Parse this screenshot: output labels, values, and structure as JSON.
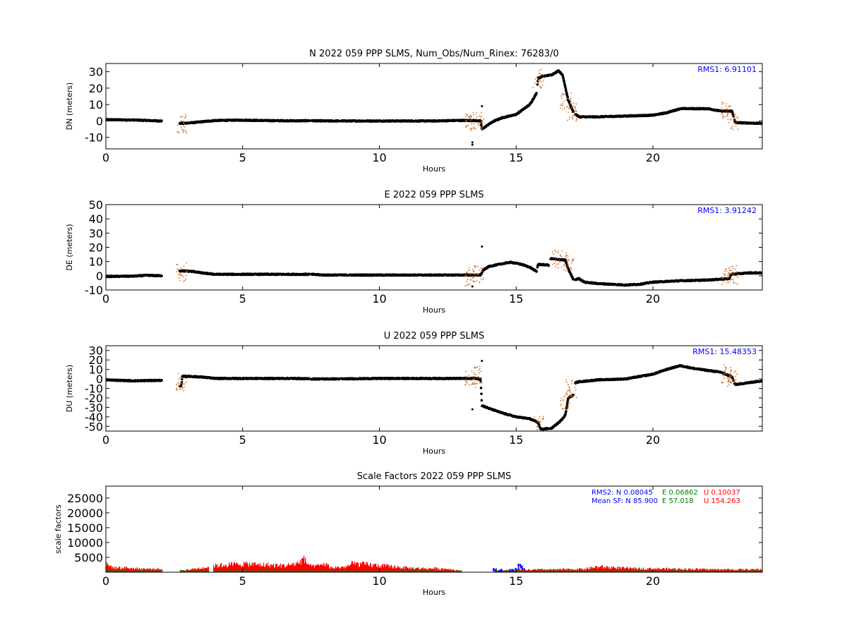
{
  "chart_data": [
    {
      "type": "scatter",
      "title": "N 2022 059 PPP  SLMS, Num_Obs/Num_Rinex: 76283/0",
      "xlabel": "Hours",
      "ylabel": "DN (meters)",
      "xlim": [
        0,
        24
      ],
      "ylim": [
        -17,
        35
      ],
      "xticks": [
        0,
        5,
        10,
        15,
        20
      ],
      "yticks": [
        -10,
        0,
        10,
        20,
        30
      ],
      "annotations": [
        "RMS1:  6.91101"
      ],
      "annotation_colors": [
        "#0000ff"
      ],
      "series": [
        {
          "color": "#000000",
          "points": [
            [
              0,
              0.8
            ],
            [
              1,
              0.6
            ],
            [
              2,
              0
            ],
            [
              2.75,
              -1.5
            ],
            [
              3.2,
              -1
            ],
            [
              3.5,
              -0.5
            ],
            [
              4,
              0.3
            ],
            [
              5,
              0.5
            ],
            [
              6,
              0.2
            ],
            [
              7,
              0.1
            ],
            [
              7.5,
              0.2
            ],
            [
              8,
              0
            ],
            [
              8.5,
              0
            ],
            [
              10,
              0
            ],
            [
              12,
              0
            ],
            [
              12.8,
              0.3
            ],
            [
              13.4,
              0.3
            ],
            [
              13.7,
              0
            ],
            [
              13.75,
              -5
            ],
            [
              14,
              -2
            ],
            [
              14.2,
              0
            ],
            [
              14.5,
              2
            ],
            [
              15,
              4
            ],
            [
              15.5,
              10
            ],
            [
              15.75,
              17
            ],
            [
              15.8,
              26
            ],
            [
              16,
              27.5
            ],
            [
              16.3,
              28
            ],
            [
              16.55,
              30.5
            ],
            [
              16.7,
              28
            ],
            [
              16.9,
              13
            ],
            [
              17.1,
              5
            ],
            [
              17.3,
              2.5
            ],
            [
              18,
              2.5
            ],
            [
              19,
              3
            ],
            [
              20,
              3.5
            ],
            [
              20.5,
              5
            ],
            [
              21,
              7.5
            ],
            [
              22,
              7.5
            ],
            [
              22.5,
              6
            ],
            [
              22.9,
              6
            ],
            [
              23,
              -1
            ],
            [
              24,
              -1.5
            ]
          ],
          "isolated": [
            [
              13.4,
              -13
            ],
            [
              13.4,
              -14.5
            ],
            [
              13.75,
              9
            ]
          ]
        },
        {
          "color": "#d2691e",
          "name": "",
          "scatter_around": [
            [
              2.75,
              -1.5
            ],
            [
              13.3,
              0
            ],
            [
              13.6,
              0
            ],
            [
              15.8,
              26
            ],
            [
              16.8,
              13
            ],
            [
              17.0,
              6
            ],
            [
              22.7,
              6
            ],
            [
              22.9,
              0
            ]
          ]
        }
      ]
    },
    {
      "type": "scatter",
      "title": "E 2022 059 PPP  SLMS",
      "xlabel": "Hours",
      "ylabel": "DE (meters)",
      "xlim": [
        0,
        24
      ],
      "ylim": [
        -10,
        50
      ],
      "xticks": [
        0,
        5,
        10,
        15,
        20
      ],
      "yticks": [
        -10,
        0,
        10,
        20,
        30,
        40,
        50
      ],
      "annotations": [
        "RMS1:  3.91242"
      ],
      "annotation_colors": [
        "#0000ff"
      ],
      "series": [
        {
          "color": "#000000",
          "points": [
            [
              0,
              -0.5
            ],
            [
              1,
              -0.3
            ],
            [
              1.5,
              0.3
            ],
            [
              2,
              0
            ],
            [
              2.75,
              3.5
            ],
            [
              3.2,
              3
            ],
            [
              3.5,
              2
            ],
            [
              4,
              1
            ],
            [
              5,
              1
            ],
            [
              7,
              1
            ],
            [
              7.5,
              1
            ],
            [
              8,
              0.5
            ],
            [
              9,
              0.5
            ],
            [
              10,
              0.5
            ],
            [
              12,
              0.5
            ],
            [
              13,
              0.5
            ],
            [
              13.5,
              0.5
            ],
            [
              13.7,
              0.5
            ],
            [
              13.8,
              4
            ],
            [
              14,
              6.5
            ],
            [
              14.5,
              8.5
            ],
            [
              14.8,
              9.5
            ],
            [
              15.2,
              8
            ],
            [
              15.5,
              6
            ],
            [
              15.75,
              3
            ],
            [
              15.8,
              8
            ],
            [
              16.2,
              7.5
            ],
            [
              16.25,
              12
            ],
            [
              16.8,
              11
            ],
            [
              16.9,
              5
            ],
            [
              17.1,
              -3
            ],
            [
              17.3,
              -2
            ],
            [
              17.5,
              -4.5
            ],
            [
              18,
              -5.5
            ],
            [
              19,
              -6.5
            ],
            [
              19.5,
              -6
            ],
            [
              20,
              -4.5
            ],
            [
              21,
              -3.5
            ],
            [
              22,
              -3
            ],
            [
              22.8,
              -2
            ],
            [
              22.85,
              1
            ],
            [
              23.5,
              2
            ],
            [
              24,
              2
            ]
          ],
          "isolated": [
            [
              13.4,
              -7.5
            ],
            [
              13.75,
              20.5
            ]
          ]
        },
        {
          "color": "#d2691e",
          "name": "",
          "scatter_around": [
            [
              2.75,
              3
            ],
            [
              13.3,
              0
            ],
            [
              13.6,
              2
            ],
            [
              16.5,
              12
            ],
            [
              16.9,
              10
            ],
            [
              22.7,
              0
            ],
            [
              22.9,
              1
            ]
          ]
        }
      ]
    },
    {
      "type": "scatter",
      "title": "U 2022 059 PPP  SLMS",
      "xlabel": "Hours",
      "ylabel": "DU (meters)",
      "xlim": [
        0,
        24
      ],
      "ylim": [
        -55,
        35
      ],
      "xticks": [
        0,
        5,
        10,
        15,
        20
      ],
      "yticks": [
        -50,
        -40,
        -30,
        -20,
        -10,
        0,
        10,
        20,
        30
      ],
      "annotations": [
        "RMS1: 15.48353"
      ],
      "annotation_colors": [
        "#0000ff"
      ],
      "series": [
        {
          "color": "#000000",
          "points": [
            [
              0,
              -1
            ],
            [
              1,
              -2
            ],
            [
              2,
              -1.5
            ],
            [
              2.75,
              -8
            ],
            [
              2.8,
              3
            ],
            [
              3.2,
              2.5
            ],
            [
              3.5,
              2
            ],
            [
              4,
              0.5
            ],
            [
              5,
              0.5
            ],
            [
              7,
              0.5
            ],
            [
              7.5,
              0
            ],
            [
              8,
              0
            ],
            [
              8.5,
              0
            ],
            [
              10,
              0.5
            ],
            [
              12,
              0.5
            ],
            [
              13,
              0.5
            ],
            [
              13.5,
              0.5
            ],
            [
              13.7,
              0
            ],
            [
              13.75,
              -28
            ],
            [
              14,
              -31
            ],
            [
              14.5,
              -36
            ],
            [
              15,
              -40
            ],
            [
              15.5,
              -42
            ],
            [
              15.8,
              -46
            ],
            [
              15.9,
              -53
            ],
            [
              16.3,
              -52
            ],
            [
              16.6,
              -45
            ],
            [
              16.8,
              -38
            ],
            [
              16.9,
              -20
            ],
            [
              17.1,
              -17
            ],
            [
              17.15,
              -4
            ],
            [
              17.3,
              -3
            ],
            [
              18,
              -1
            ],
            [
              19,
              0
            ],
            [
              20,
              5
            ],
            [
              20.5,
              10
            ],
            [
              21,
              14
            ],
            [
              21.5,
              11
            ],
            [
              22,
              9
            ],
            [
              22.5,
              7
            ],
            [
              22.9,
              2
            ],
            [
              23,
              -6
            ],
            [
              24,
              -2
            ]
          ],
          "isolated": [
            [
              13.4,
              -32
            ],
            [
              13.75,
              19
            ]
          ]
        },
        {
          "color": "#d2691e",
          "name": "",
          "scatter_around": [
            [
              2.75,
              -2
            ],
            [
              13.3,
              0
            ],
            [
              13.6,
              5
            ],
            [
              15.8,
              -48
            ],
            [
              16.8,
              -22
            ],
            [
              17.0,
              -10
            ],
            [
              22.7,
              6
            ],
            [
              22.9,
              2
            ]
          ]
        }
      ]
    },
    {
      "type": "bar",
      "title": "Scale Factors 2022 059 PPP  SLMS",
      "xlabel": "Hours",
      "ylabel": "scale factors",
      "xlim": [
        0,
        24
      ],
      "ylim": [
        0,
        29000
      ],
      "xticks": [
        0,
        5,
        10,
        15,
        20
      ],
      "yticks": [
        5000,
        10000,
        15000,
        20000,
        25000
      ],
      "annotations": [
        "RMS2: N  0.08045",
        "E  0.06862",
        "U  0.10037",
        "Mean SF: N  85.900",
        "E  57.018",
        "U 154.263"
      ],
      "annotation_colors": [
        "#0000ff",
        "#008000",
        "#ff0000",
        "#0000ff",
        "#008000",
        "#ff0000"
      ],
      "series": [
        {
          "color": "#ff0000",
          "envelope": [
            [
              0,
              3500
            ],
            [
              0.3,
              2000
            ],
            [
              0.8,
              2000
            ],
            [
              1,
              1700
            ],
            [
              1.5,
              1500
            ],
            [
              2,
              1500
            ],
            [
              2.75,
              800
            ],
            [
              3.2,
              1500
            ],
            [
              3.5,
              2000
            ],
            [
              3.8,
              2500
            ],
            [
              4,
              3000
            ],
            [
              4.5,
              3500
            ],
            [
              5,
              3800
            ],
            [
              5.5,
              3500
            ],
            [
              6,
              3200
            ],
            [
              6.5,
              3000
            ],
            [
              7,
              4000
            ],
            [
              7.2,
              6000
            ],
            [
              7.5,
              2500
            ],
            [
              7.8,
              3000
            ],
            [
              8,
              4000
            ],
            [
              8.2,
              2000
            ],
            [
              8.8,
              2500
            ],
            [
              9,
              4000
            ],
            [
              9.5,
              3500
            ],
            [
              10,
              3000
            ],
            [
              10.5,
              2500
            ],
            [
              11,
              2000
            ],
            [
              11.5,
              1700
            ],
            [
              12,
              1700
            ],
            [
              12.5,
              1500
            ],
            [
              13,
              500
            ],
            [
              13.5,
              500
            ],
            [
              14,
              500
            ],
            [
              14.2,
              700
            ],
            [
              15,
              1000
            ],
            [
              16,
              1200
            ],
            [
              17,
              1300
            ],
            [
              17.5,
              1500
            ],
            [
              18,
              2500
            ],
            [
              19,
              1800
            ],
            [
              20,
              1600
            ],
            [
              21,
              1500
            ],
            [
              22,
              1300
            ],
            [
              23,
              1200
            ],
            [
              24,
              1300
            ]
          ],
          "gaps": [
            [
              2.05,
              2.7
            ],
            [
              3.75,
              3.9
            ],
            [
              13.0,
              14.2
            ]
          ]
        },
        {
          "color": "#008000",
          "level": 500
        },
        {
          "color": "#0000ff",
          "points": [
            [
              14.2,
              1500
            ],
            [
              14.4,
              1200
            ],
            [
              14.8,
              1500
            ],
            [
              15.0,
              2000
            ],
            [
              15.1,
              3000
            ],
            [
              15.2,
              2500
            ]
          ]
        }
      ]
    }
  ]
}
